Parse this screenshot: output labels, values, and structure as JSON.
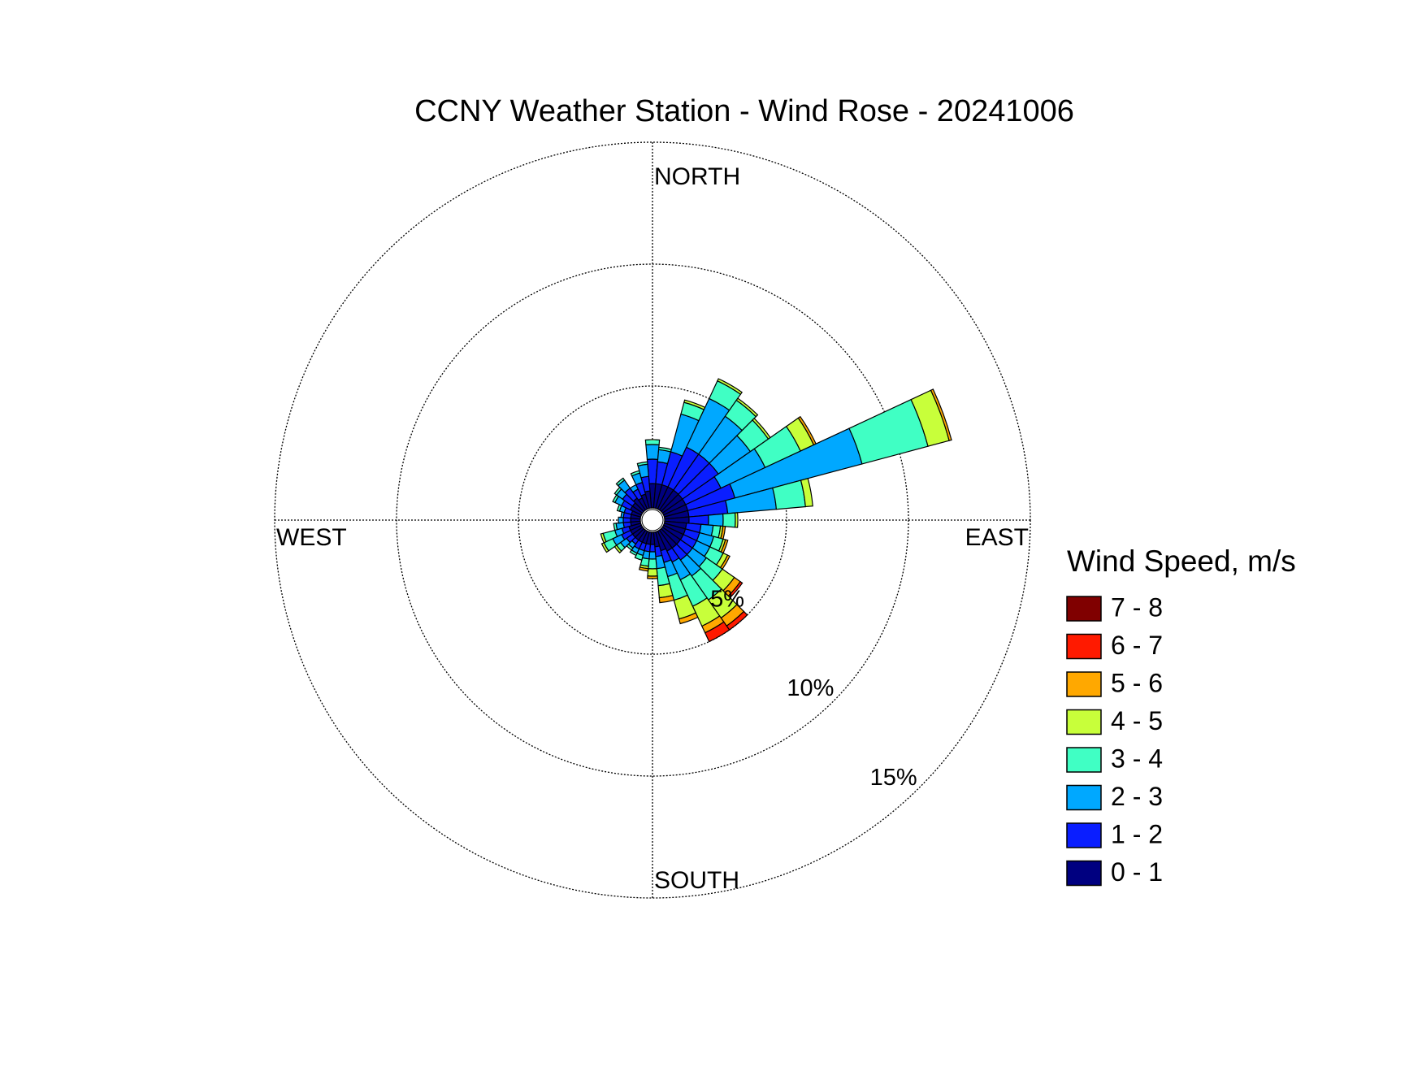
{
  "chart_data": {
    "type": "windrose",
    "title": "CCNY Weather Station - Wind Rose - 20241006",
    "direction_labels": [
      "NORTH",
      "EAST",
      "SOUTH",
      "WEST"
    ],
    "legend_title": "Wind Speed, m/s",
    "theta": [
      0,
      10,
      20,
      30,
      40,
      50,
      60,
      70,
      80,
      90,
      100,
      110,
      120,
      130,
      140,
      150,
      160,
      170,
      180,
      190,
      200,
      210,
      220,
      230,
      240,
      250,
      260,
      270,
      280,
      290,
      300,
      310,
      320,
      330,
      340,
      350
    ],
    "rlim": [
      0,
      15
    ],
    "rticks": [
      {
        "value": 5,
        "label": "5%"
      },
      {
        "value": 10,
        "label": "10%"
      },
      {
        "value": 15,
        "label": "15%"
      }
    ],
    "grid": true,
    "series": [
      {
        "name": "0 - 1",
        "color": "#000080",
        "values": [
          1.0,
          1.0,
          1.0,
          1.0,
          1.0,
          1.0,
          1.0,
          1.0,
          1.0,
          1.0,
          0.9,
          0.9,
          0.9,
          0.9,
          0.9,
          0.9,
          0.8,
          0.6,
          0.5,
          0.5,
          0.5,
          0.5,
          0.5,
          0.5,
          0.5,
          0.5,
          0.4,
          0.4,
          0.4,
          0.4,
          0.5,
          0.5,
          0.6,
          0.5,
          0.6,
          0.7
        ]
      },
      {
        "name": "1 - 2",
        "color": "#0a1eff",
        "values": [
          1.0,
          0.9,
          1.4,
          1.8,
          1.8,
          1.8,
          1.6,
          2.0,
          1.6,
          0.8,
          0.6,
          0.6,
          0.6,
          0.6,
          0.6,
          0.5,
          0.5,
          0.4,
          0.3,
          0.3,
          0.3,
          0.3,
          0.2,
          0.3,
          0.4,
          0.3,
          0.3,
          0.3,
          0.3,
          0.3,
          0.4,
          0.5,
          0.5,
          0.4,
          0.5,
          0.6
        ]
      },
      {
        "name": "2 - 3",
        "color": "#00a8ff",
        "values": [
          0.6,
          0.5,
          1.6,
          2.2,
          1.9,
          1.6,
          2.0,
          5.4,
          2.0,
          0.6,
          0.5,
          0.6,
          0.6,
          0.7,
          0.8,
          0.8,
          0.6,
          0.5,
          0.3,
          0.3,
          0.2,
          0.2,
          0.2,
          0.3,
          0.4,
          0.3,
          0.3,
          0.2,
          0.1,
          0.2,
          0.3,
          0.3,
          0.4,
          0.2,
          0.4,
          0.5
        ]
      },
      {
        "name": "3 - 4",
        "color": "#40ffc4",
        "values": [
          0.2,
          0.1,
          0.5,
          0.8,
          0.8,
          0.9,
          1.6,
          2.8,
          1.2,
          0.5,
          0.3,
          0.4,
          0.6,
          0.8,
          1.2,
          1.2,
          1.0,
          0.7,
          0.4,
          0.3,
          0.2,
          0.1,
          0.1,
          0.2,
          0.4,
          0.5,
          0.1,
          0,
          0,
          0.1,
          0.1,
          0.1,
          0.1,
          0,
          0.1,
          0.1
        ]
      },
      {
        "name": "4 - 5",
        "color": "#c8ff3a",
        "values": [
          0,
          0,
          0.1,
          0.1,
          0.1,
          0.1,
          0.6,
          0.9,
          0.3,
          0.1,
          0.1,
          0.1,
          0.2,
          0.6,
          0.9,
          0.9,
          0.8,
          0.5,
          0.3,
          0.1,
          0,
          0,
          0,
          0.1,
          0.1,
          0.1,
          0,
          0,
          0,
          0,
          0,
          0,
          0,
          0,
          0,
          0
        ]
      },
      {
        "name": "5 - 6",
        "color": "#ffa800",
        "values": [
          0,
          0,
          0,
          0,
          0,
          0,
          0.1,
          0.1,
          0,
          0,
          0.1,
          0.1,
          0.1,
          0.3,
          0.4,
          0.3,
          0.2,
          0.2,
          0.1,
          0.1,
          0,
          0,
          0,
          0,
          0,
          0,
          0,
          0,
          0,
          0,
          0,
          0,
          0,
          0,
          0,
          0
        ]
      },
      {
        "name": "6 - 7",
        "color": "#ff1a00",
        "values": [
          0,
          0,
          0,
          0,
          0,
          0,
          0,
          0,
          0,
          0,
          0,
          0,
          0,
          0.1,
          0.2,
          0.4,
          0,
          0,
          0,
          0,
          0,
          0,
          0,
          0,
          0,
          0,
          0,
          0,
          0,
          0,
          0,
          0,
          0,
          0,
          0,
          0
        ]
      },
      {
        "name": "7 - 8",
        "color": "#800000",
        "values": [
          0,
          0,
          0,
          0,
          0,
          0,
          0,
          0,
          0,
          0,
          0,
          0,
          0,
          0,
          0,
          0,
          0,
          0,
          0,
          0,
          0,
          0,
          0,
          0,
          0,
          0,
          0,
          0,
          0,
          0,
          0,
          0,
          0,
          0,
          0,
          0
        ]
      }
    ]
  }
}
